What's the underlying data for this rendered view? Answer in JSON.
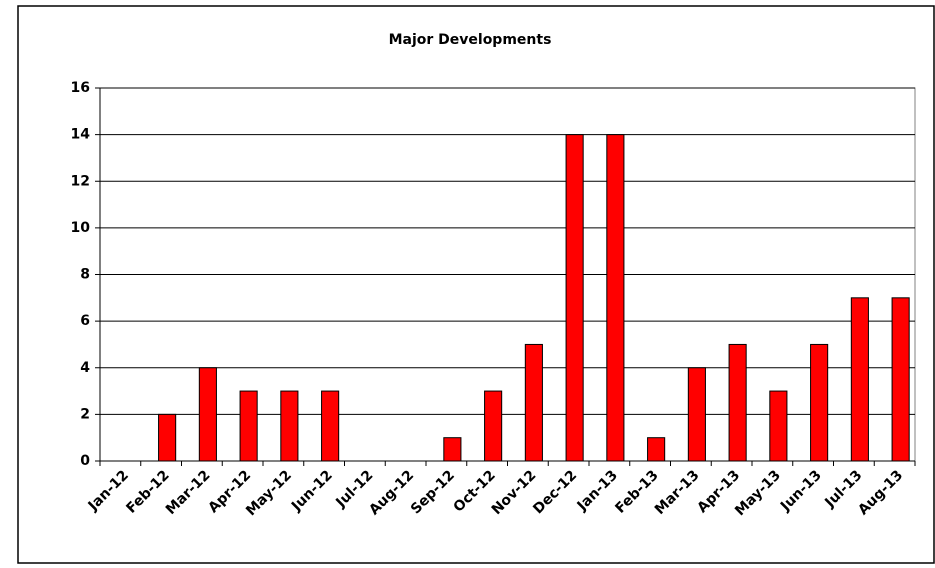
{
  "chart_data": {
    "type": "bar",
    "title": "Major Developments",
    "categories": [
      "Jan-12",
      "Feb-12",
      "Mar-12",
      "Apr-12",
      "May-12",
      "Jun-12",
      "Jul-12",
      "Aug-12",
      "Sep-12",
      "Oct-12",
      "Nov-12",
      "Dec-12",
      "Jan-13",
      "Feb-13",
      "Mar-13",
      "Apr-13",
      "May-13",
      "Jun-13",
      "Jul-13",
      "Aug-13"
    ],
    "values": [
      0,
      2,
      4,
      3,
      3,
      3,
      0,
      0,
      1,
      3,
      5,
      14,
      14,
      1,
      4,
      5,
      3,
      5,
      7,
      7
    ],
    "color": "#ff0000",
    "ylim": [
      0,
      16
    ],
    "yticks": [
      0,
      2,
      4,
      6,
      8,
      10,
      12,
      14,
      16
    ],
    "grid": true
  }
}
